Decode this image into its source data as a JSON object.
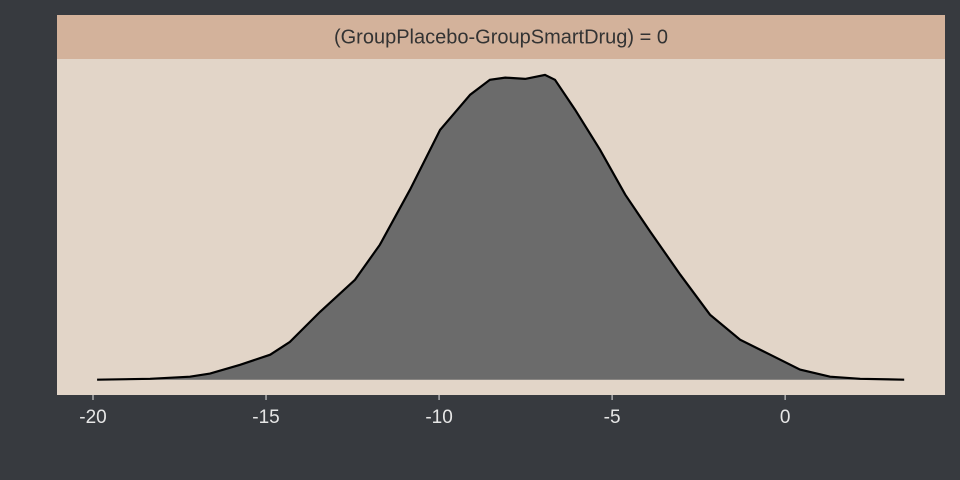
{
  "chart_data": {
    "type": "area",
    "strip_title": "(GroupPlacebo-GroupSmartDrug) = 0",
    "x": [
      -19.88,
      -18.35,
      -17.2,
      -16.62,
      -15.75,
      -14.88,
      -14.31,
      -13.44,
      -12.43,
      -11.71,
      -10.84,
      -9.97,
      -9.1,
      -8.53,
      -8.09,
      -7.51,
      -6.94,
      -6.65,
      -6.07,
      -5.35,
      -4.62,
      -3.9,
      -3.03,
      -2.17,
      -1.3,
      -0.43,
      0.43,
      1.3,
      2.17,
      3.44
    ],
    "values": [
      0,
      0.0003,
      0.001,
      0.002,
      0.0049,
      0.0082,
      0.0124,
      0.0222,
      0.0327,
      0.0442,
      0.0622,
      0.0818,
      0.0933,
      0.0982,
      0.0989,
      0.0985,
      0.0998,
      0.0982,
      0.0884,
      0.0753,
      0.0606,
      0.0485,
      0.0344,
      0.0213,
      0.0131,
      0.0082,
      0.0033,
      0.001,
      0.0003,
      0
    ],
    "color": "#6b6b6b",
    "xlim": [
      -21.04,
      4.62
    ],
    "ylim": [
      -0.005,
      0.105
    ],
    "xticks": [
      -20,
      -15,
      -10,
      -5,
      0
    ]
  }
}
